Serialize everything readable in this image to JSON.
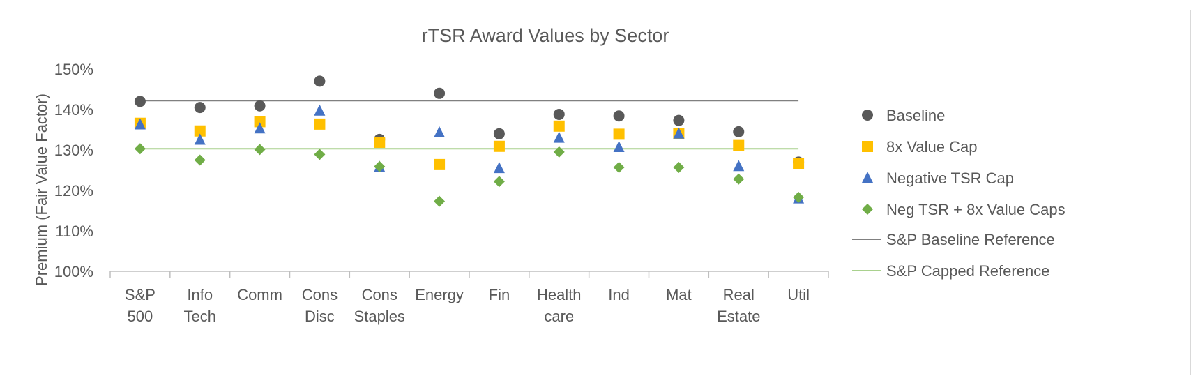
{
  "chart_data": {
    "type": "scatter",
    "title": "rTSR Award Values by Sector",
    "ylabel": "Premium (Fair Value Factor)",
    "xlabel": "",
    "ylim": [
      100,
      150
    ],
    "yticks": [
      "100%",
      "110%",
      "120%",
      "130%",
      "140%",
      "150%"
    ],
    "ytick_values": [
      100,
      110,
      120,
      130,
      140,
      150
    ],
    "categories": [
      [
        "S&P",
        "500"
      ],
      [
        "Info",
        "Tech"
      ],
      [
        "Comm"
      ],
      [
        "Cons",
        "Disc"
      ],
      [
        "Cons",
        "Staples"
      ],
      [
        "Energy"
      ],
      [
        "Fin"
      ],
      [
        "Health",
        "care"
      ],
      [
        "Ind"
      ],
      [
        "Mat"
      ],
      [
        "Real",
        "Estate"
      ],
      [
        "Util"
      ]
    ],
    "grid": false,
    "legend_position": "right",
    "series": [
      {
        "name": "Baseline",
        "marker": "circle",
        "color": "#595959",
        "values": [
          142.0,
          140.5,
          140.9,
          147.0,
          132.6,
          144.0,
          134.0,
          138.8,
          138.4,
          137.3,
          134.5,
          127.0
        ]
      },
      {
        "name": "8x Value Cap",
        "marker": "square",
        "color": "#FFC000",
        "values": [
          136.6,
          134.7,
          137.0,
          136.4,
          131.9,
          126.4,
          130.9,
          135.9,
          133.9,
          134.0,
          131.1,
          126.6
        ]
      },
      {
        "name": "Negative TSR Cap",
        "marker": "triangle",
        "color": "#4472C4",
        "values": [
          136.3,
          132.5,
          135.3,
          139.7,
          125.8,
          134.3,
          125.5,
          133.0,
          130.7,
          134.0,
          126.0,
          118.0
        ]
      },
      {
        "name": "Neg TSR + 8x Value Caps",
        "marker": "diamond",
        "color": "#70AD47",
        "values": [
          130.3,
          127.5,
          130.1,
          128.9,
          125.9,
          117.3,
          122.2,
          129.5,
          125.7,
          125.7,
          122.8,
          118.3
        ]
      }
    ],
    "reference_lines": [
      {
        "name": "S&P Baseline Reference",
        "value": 142.2,
        "color": "#808080"
      },
      {
        "name": "S&P Capped Reference",
        "value": 130.3,
        "color": "#A9D18E"
      }
    ]
  }
}
